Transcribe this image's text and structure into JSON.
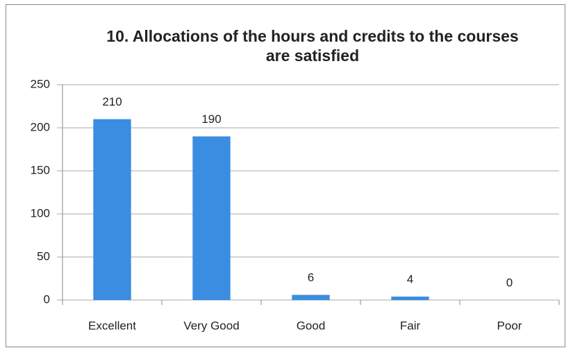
{
  "chart_data": {
    "type": "bar",
    "title": "10. Allocations of the hours and credits to the courses are satisfied",
    "categories": [
      "Excellent",
      "Very Good",
      "Good",
      "Fair",
      "Poor"
    ],
    "values": [
      210,
      190,
      6,
      4,
      0
    ],
    "color": "#3a8de0",
    "ylim": [
      0,
      250
    ],
    "yticks": [
      0,
      50,
      100,
      150,
      200,
      250
    ],
    "grid": true
  }
}
